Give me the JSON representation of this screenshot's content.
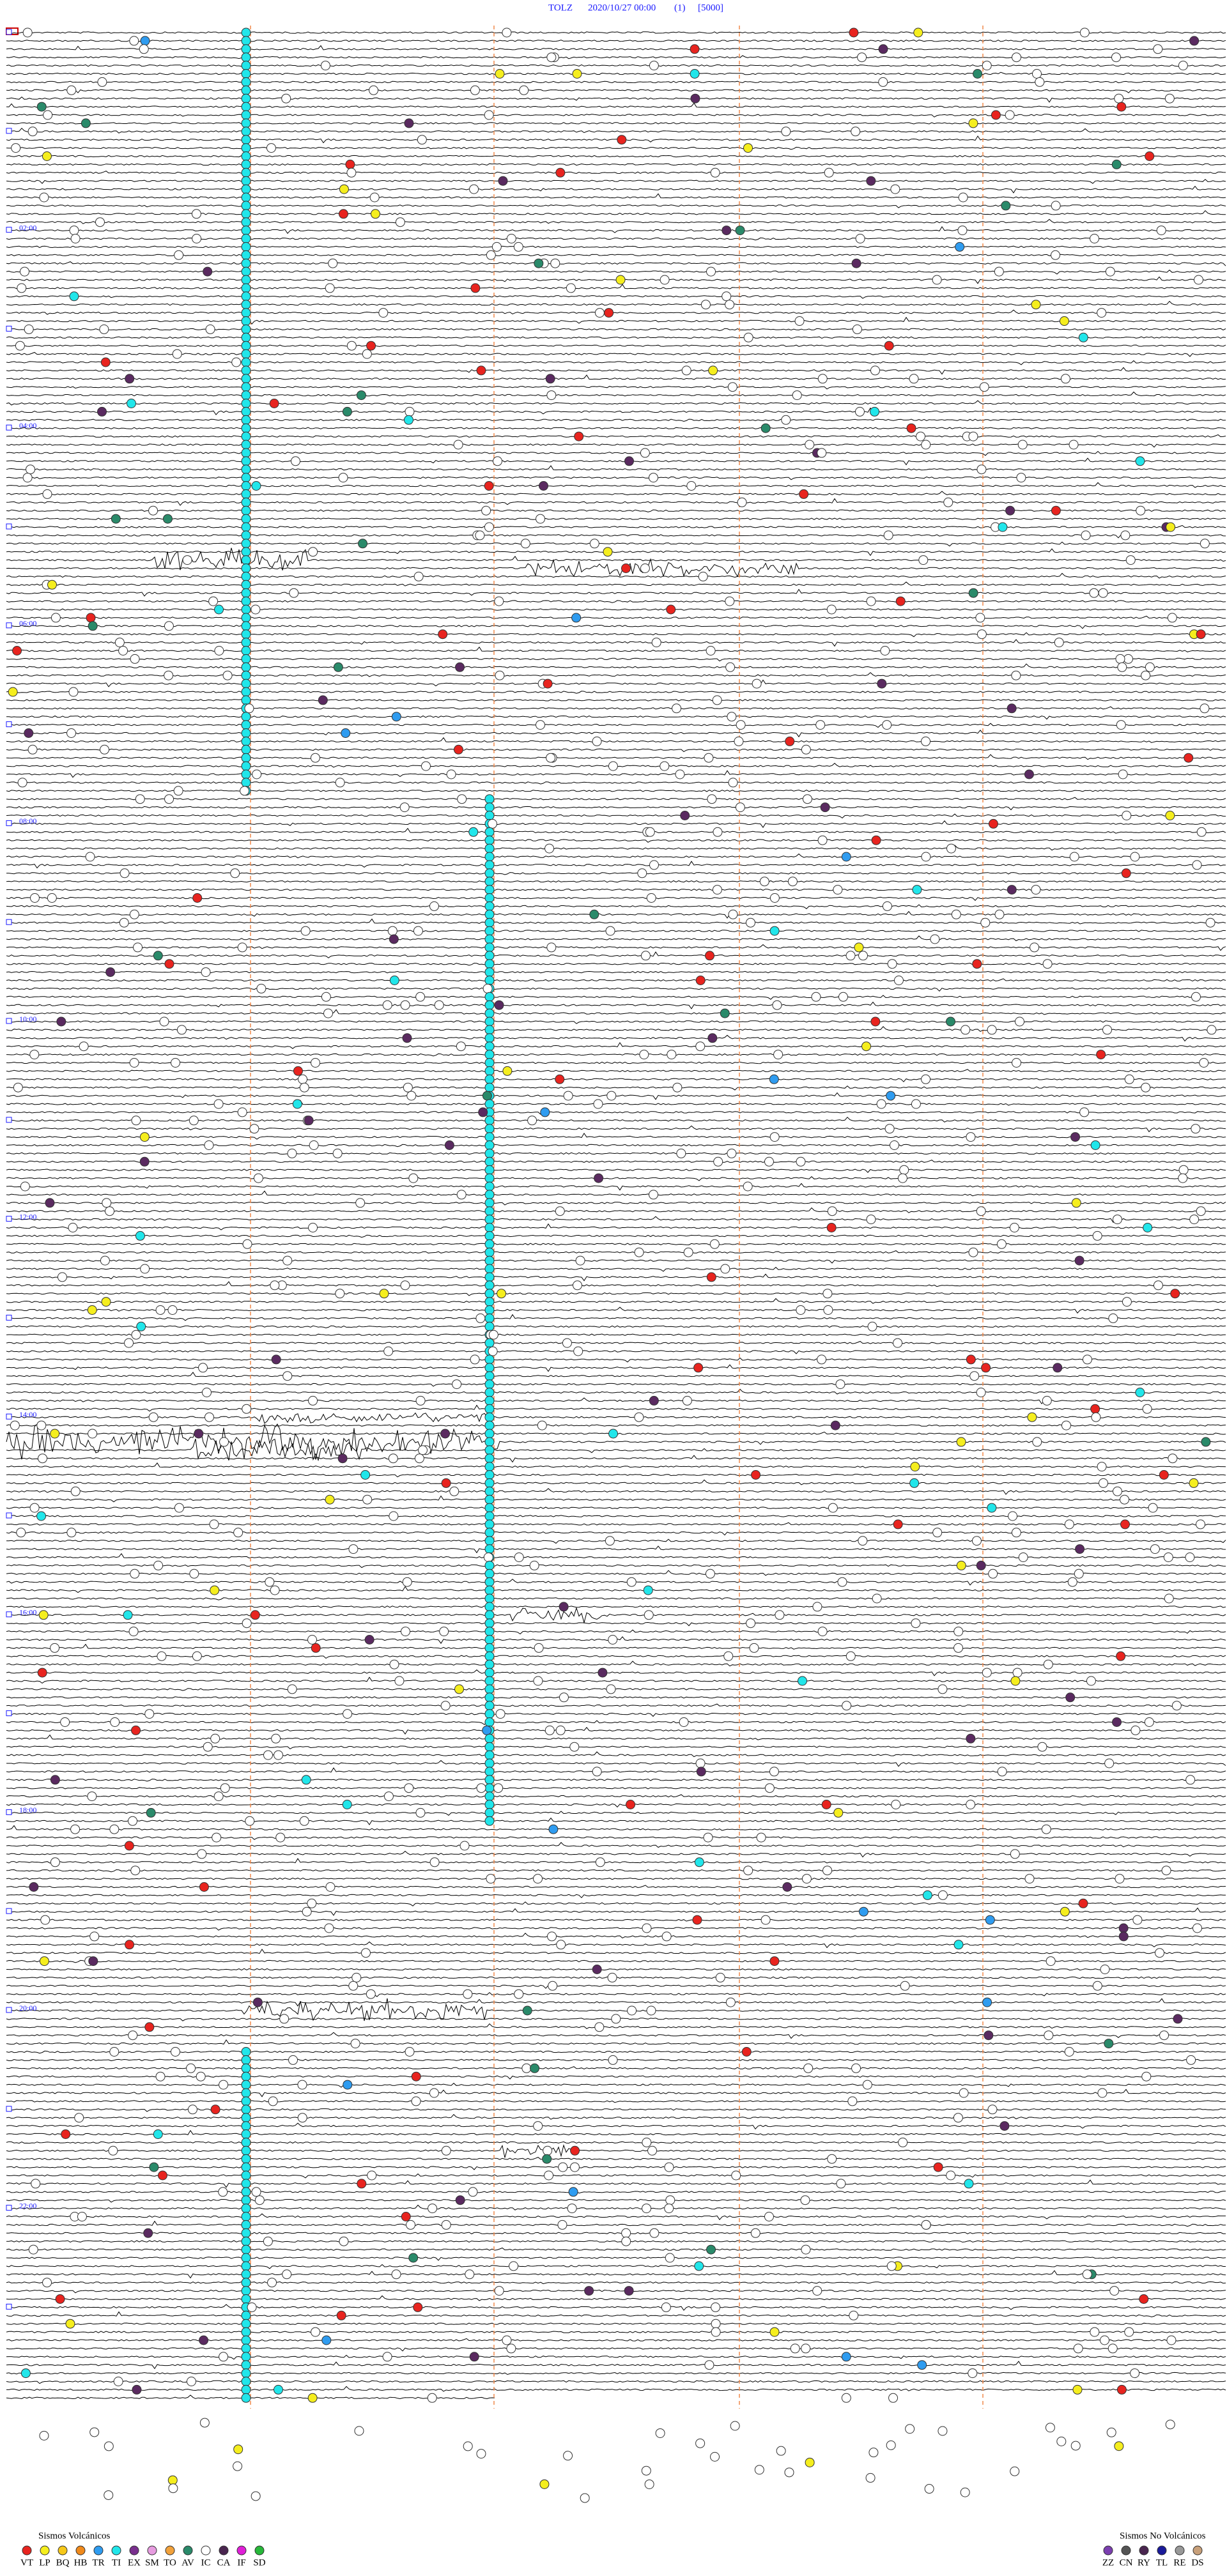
{
  "header": {
    "station": "TOLZ",
    "date": "2020/10/27 00:00",
    "channel": "(1)",
    "scale": "[5000]"
  },
  "time_labels": [
    "02:00",
    "04:00",
    "06:00",
    "08:00",
    "10:00",
    "12:00",
    "14:00",
    "16:00",
    "18:00",
    "20:00",
    "22:00"
  ],
  "legend_volcanic": {
    "title": "Sismos Volcánicos",
    "items": [
      {
        "label": "VT",
        "color": "#e8241f"
      },
      {
        "label": "LP",
        "color": "#f5ee1e"
      },
      {
        "label": "BQ",
        "color": "#f6c81a"
      },
      {
        "label": "HB",
        "color": "#f08a1c"
      },
      {
        "label": "TR",
        "color": "#2f9cf0"
      },
      {
        "label": "TI",
        "color": "#21e6ea"
      },
      {
        "label": "EX",
        "color": "#7a2f8f"
      },
      {
        "label": "SM",
        "color": "#e79ce0"
      },
      {
        "label": "TO",
        "color": "#f2a23c"
      },
      {
        "label": "AV",
        "color": "#2a8a6a"
      },
      {
        "label": "IC",
        "color": "#ffffff"
      },
      {
        "label": "CA",
        "color": "#4a2650"
      },
      {
        "label": "IF",
        "color": "#e01fd8"
      },
      {
        "label": "SD",
        "color": "#27b83a"
      }
    ]
  },
  "legend_non_volcanic": {
    "title": "Sismos No Volcánicos",
    "items": [
      {
        "label": "ZZ",
        "color": "#7b3fb0"
      },
      {
        "label": "CN",
        "color": "#555555"
      },
      {
        "label": "RY",
        "color": "#4a2650"
      },
      {
        "label": "TL",
        "color": "#1a1a9a"
      },
      {
        "label": "RE",
        "color": "#999999"
      },
      {
        "label": "DS",
        "color": "#c8a07a"
      }
    ]
  }
}
